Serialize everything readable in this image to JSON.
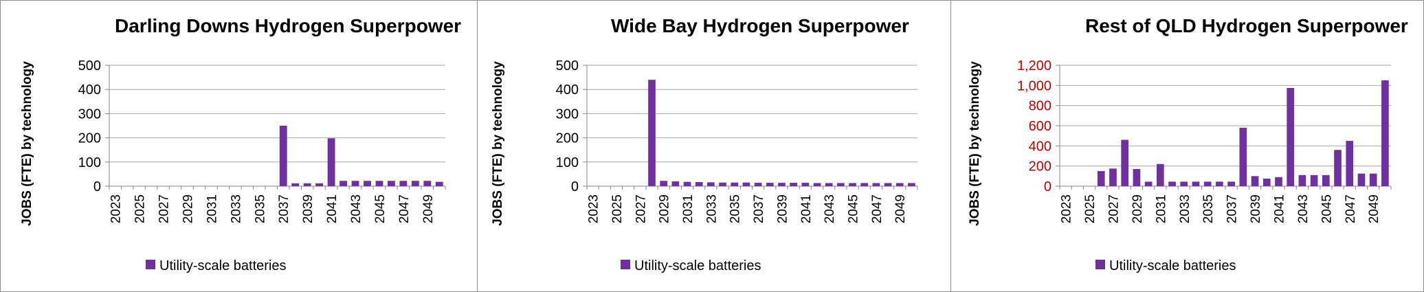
{
  "colors": {
    "bar": "#7030a0",
    "grid": "#a6a6a6",
    "axis_text": "#000000",
    "red_axis_text": "#c00000"
  },
  "chart_data": [
    {
      "type": "bar",
      "title": "Darling Downs Hydrogen Superpower",
      "ylabel": "JOBS (FTE) by technology",
      "xlabel": "",
      "ylim": [
        0,
        500
      ],
      "yticks": [
        "0",
        "100",
        "200",
        "300",
        "400",
        "500"
      ],
      "ytick_values": [
        0,
        100,
        200,
        300,
        400,
        500
      ],
      "categories": [
        "2023",
        "2024",
        "2025",
        "2026",
        "2027",
        "2028",
        "2029",
        "2030",
        "2031",
        "2032",
        "2033",
        "2034",
        "2035",
        "2036",
        "2037",
        "2038",
        "2039",
        "2040",
        "2041",
        "2042",
        "2043",
        "2044",
        "2045",
        "2046",
        "2047",
        "2048",
        "2049",
        "2050"
      ],
      "xtick_labels": [
        "2023",
        "2025",
        "2027",
        "2029",
        "2031",
        "2033",
        "2035",
        "2037",
        "2039",
        "2041",
        "2043",
        "2045",
        "2047",
        "2049"
      ],
      "grid": true,
      "legend_position": "bottom-left",
      "series": [
        {
          "name": "Utility-scale batteries",
          "values": [
            0,
            0,
            0,
            0,
            0,
            0,
            0,
            0,
            0,
            0,
            0,
            0,
            0,
            0,
            250,
            12,
            12,
            12,
            198,
            22,
            22,
            22,
            22,
            22,
            22,
            22,
            22,
            18
          ]
        }
      ]
    },
    {
      "type": "bar",
      "title": "Wide Bay Hydrogen Superpower",
      "ylabel": "JOBS (FTE) by technology",
      "xlabel": "",
      "ylim": [
        0,
        500
      ],
      "yticks": [
        "0",
        "100",
        "200",
        "300",
        "400",
        "500"
      ],
      "ytick_values": [
        0,
        100,
        200,
        300,
        400,
        500
      ],
      "categories": [
        "2023",
        "2024",
        "2025",
        "2026",
        "2027",
        "2028",
        "2029",
        "2030",
        "2031",
        "2032",
        "2033",
        "2034",
        "2035",
        "2036",
        "2037",
        "2038",
        "2039",
        "2040",
        "2041",
        "2042",
        "2043",
        "2044",
        "2045",
        "2046",
        "2047",
        "2048",
        "2049",
        "2050"
      ],
      "xtick_labels": [
        "2023",
        "2025",
        "2027",
        "2029",
        "2031",
        "2033",
        "2035",
        "2037",
        "2039",
        "2041",
        "2043",
        "2045",
        "2047",
        "2049"
      ],
      "grid": true,
      "legend_position": "bottom-left",
      "series": [
        {
          "name": "Utility-scale batteries",
          "values": [
            0,
            0,
            0,
            0,
            0,
            440,
            22,
            20,
            18,
            17,
            16,
            15,
            15,
            15,
            14,
            14,
            14,
            14,
            14,
            13,
            13,
            13,
            13,
            13,
            13,
            13,
            13,
            13
          ]
        }
      ]
    },
    {
      "type": "bar",
      "title": "Rest of QLD Hydrogen Superpower",
      "ylabel": "JOBS (FTE) by technology",
      "xlabel": "",
      "ylim": [
        0,
        1200
      ],
      "yticks": [
        "0",
        "200",
        "400",
        "600",
        "800",
        "1,000",
        "1,200"
      ],
      "ytick_values": [
        0,
        200,
        400,
        600,
        800,
        1000,
        1200
      ],
      "ytick_color": "red",
      "categories": [
        "2023",
        "2024",
        "2025",
        "2026",
        "2027",
        "2028",
        "2029",
        "2030",
        "2031",
        "2032",
        "2033",
        "2034",
        "2035",
        "2036",
        "2037",
        "2038",
        "2039",
        "2040",
        "2041",
        "2042",
        "2043",
        "2044",
        "2045",
        "2046",
        "2047",
        "2048",
        "2049",
        "2050"
      ],
      "xtick_labels": [
        "2023",
        "2025",
        "2027",
        "2029",
        "2031",
        "2033",
        "2035",
        "2037",
        "2039",
        "2041",
        "2043",
        "2045",
        "2047",
        "2049"
      ],
      "grid": true,
      "legend_position": "bottom-left",
      "series": [
        {
          "name": "Utility-scale batteries",
          "values": [
            0,
            0,
            0,
            150,
            175,
            460,
            170,
            45,
            220,
            45,
            45,
            45,
            45,
            45,
            45,
            580,
            100,
            75,
            90,
            975,
            110,
            110,
            110,
            360,
            450,
            125,
            125,
            1050
          ]
        }
      ]
    }
  ]
}
